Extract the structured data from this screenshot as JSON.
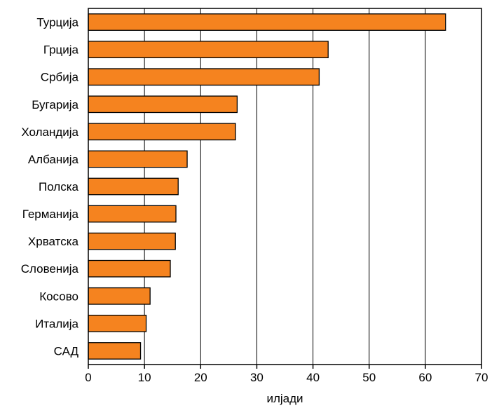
{
  "chart_data": {
    "type": "bar",
    "orientation": "horizontal",
    "categories": [
      "Турција",
      "Грција",
      "Србија",
      "Бугарија",
      "Холандија",
      "Албанија",
      "Полска",
      "Германија",
      "Хрватска",
      "Словенија",
      "Косово",
      "Италија",
      "САД"
    ],
    "values": [
      63.6,
      42.7,
      41.1,
      26.5,
      26.2,
      17.6,
      16.0,
      15.6,
      15.5,
      14.6,
      11.0,
      10.3,
      9.3
    ],
    "xlabel": "илјади",
    "ylabel": "",
    "xlim": [
      0,
      70
    ],
    "xticks": [
      0,
      10,
      20,
      30,
      40,
      50,
      60,
      70
    ],
    "grid": "vertical",
    "bar_color": "#F5831F",
    "bar_edge_color": "#000000"
  }
}
